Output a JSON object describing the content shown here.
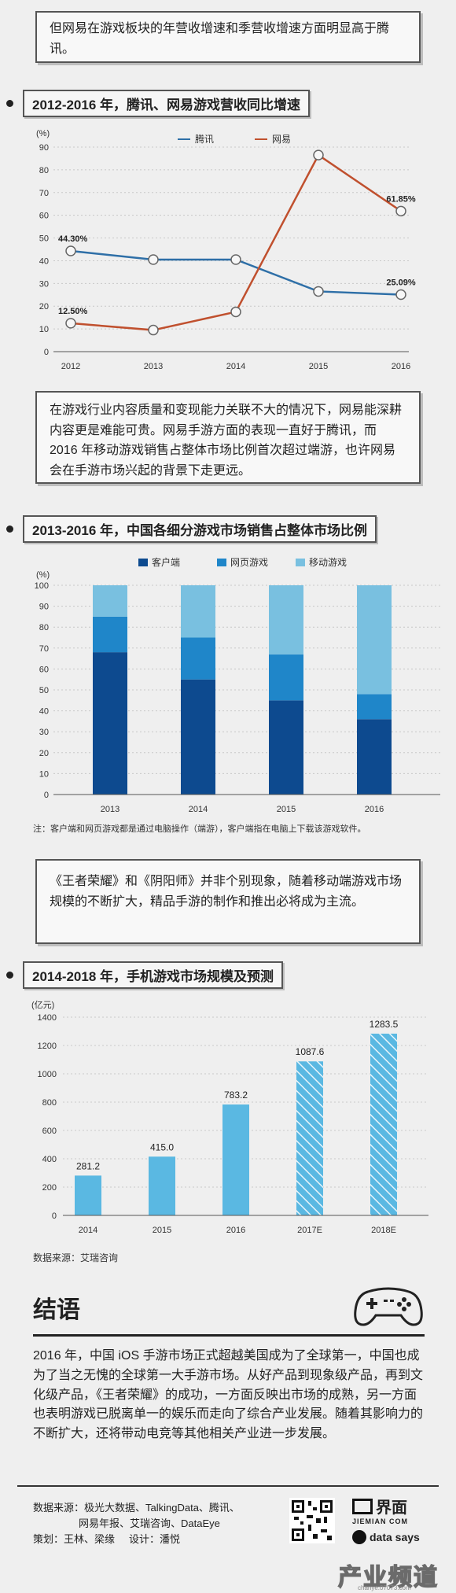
{
  "intro_box": "但网易在游戏板块的年营收增速和季营收增速方面明显高于腾讯。",
  "section1": {
    "title": "2012-2016 年，腾讯、网易游戏营收同比增速"
  },
  "box2": "在游戏行业内容质量和变现能力关联不大的情况下，网易能深耕内容更是难能可贵。网易手游方面的表现一直好于腾讯，而 2016 年移动游戏销售占整体市场比例首次超过端游，也许网易会在手游市场兴起的背景下走更远。",
  "section2": {
    "title": "2013-2016 年，中国各细分游戏市场销售占整体市场比例"
  },
  "note2": "注：客户端和网页游戏都是通过电脑操作（端游），客户端指在电脑上下载该游戏软件。",
  "box3": "《王者荣耀》和《阴阳师》并非个别现象，随着移动端游戏市场规模的不断扩大，精品手游的制作和推出必将成为主流。",
  "section3": {
    "title": "2014-2018 年，手机游戏市场规模及预测"
  },
  "source3": "数据来源：艾瑞咨询",
  "conclusion": {
    "title": "结语",
    "text": "2016 年，中国 iOS 手游市场正式超越美国成为了全球第一，中国也成为了当之无愧的全球第一大手游市场。从好产品到现象级产品，再到文化级产品，《王者荣耀》的成功，一方面反映出市场的成熟，另一方面也表明游戏已脱离单一的娱乐而走向了综合产业发展。随着其影响力的不断扩大，还将带动电竞等其他相关产业进一步发展。"
  },
  "footer": {
    "sources_line1": "数据来源：极光大数据、TalkingData、腾讯、",
    "sources_line2": "网易年报、艾瑞咨询、DataEye",
    "credits": "策划：王林、梁缘     设计：潘悦",
    "logo_cn": "界面",
    "logo_en": "JIEMIAN COM",
    "data_says": "data says",
    "watermark": "产业频道",
    "watermark_url": "chanye.07073.com"
  },
  "colors": {
    "tencent": "#2e6fa7",
    "netease": "#c0502e",
    "client": "#0d4a8f",
    "web": "#1f86c9",
    "mobile": "#79c0e0",
    "bar3": "#5ab8e2"
  },
  "chart_data": [
    {
      "type": "line",
      "unit": "(%)",
      "x": [
        "2012",
        "2013",
        "2014",
        "2015",
        "2016"
      ],
      "ylim": [
        0,
        90
      ],
      "yticks": [
        0,
        10,
        20,
        30,
        40,
        50,
        60,
        70,
        80,
        90
      ],
      "series": [
        {
          "name": "腾讯",
          "values": [
            44.3,
            40.5,
            40.5,
            26.5,
            25.09
          ],
          "labels": {
            "0": "44.30%",
            "4": "25.09%"
          }
        },
        {
          "name": "网易",
          "values": [
            12.5,
            9.5,
            17.5,
            86.5,
            61.85
          ],
          "labels": {
            "0": "12.50%",
            "4": "61.85%"
          }
        }
      ],
      "legend": "top-right"
    },
    {
      "type": "bar",
      "stacked": true,
      "unit": "(%)",
      "categories": [
        "2013",
        "2014",
        "2015",
        "2016"
      ],
      "ylim": [
        0,
        100
      ],
      "yticks": [
        0,
        10,
        20,
        30,
        40,
        50,
        60,
        70,
        80,
        90,
        100
      ],
      "series": [
        {
          "name": "客户端",
          "values": [
            68,
            55,
            45,
            36
          ]
        },
        {
          "name": "网页游戏",
          "values": [
            17,
            20,
            22,
            12
          ]
        },
        {
          "name": "移动游戏",
          "values": [
            15,
            25,
            33,
            52
          ]
        }
      ],
      "legend": "top"
    },
    {
      "type": "bar",
      "unit": "(亿元)",
      "categories": [
        "2014",
        "2015",
        "2016",
        "2017E",
        "2018E"
      ],
      "values": [
        281.2,
        415.0,
        783.2,
        1087.6,
        1283.5
      ],
      "value_labels": [
        "281.2",
        "415.0",
        "783.2",
        "1087.6",
        "1283.5"
      ],
      "forecast": [
        false,
        false,
        false,
        true,
        true
      ],
      "ylim": [
        0,
        1400
      ],
      "yticks": [
        0,
        200,
        400,
        600,
        800,
        1000,
        1200,
        1400
      ]
    }
  ]
}
